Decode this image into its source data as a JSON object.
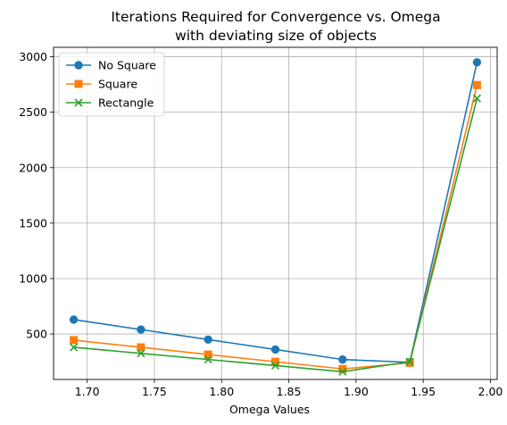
{
  "chart_data": {
    "type": "line",
    "title_line1": "Iterations Required for Convergence vs. Omega",
    "title_line2": "with deviating size of objects",
    "xlabel": "Omega Values",
    "ylabel": "",
    "xlim": [
      1.675,
      2.005
    ],
    "ylim": [
      90,
      3085
    ],
    "xticks": [
      1.7,
      1.75,
      1.8,
      1.85,
      1.9,
      1.95,
      2.0
    ],
    "xtick_labels": [
      "1.70",
      "1.75",
      "1.80",
      "1.85",
      "1.90",
      "1.95",
      "2.00"
    ],
    "yticks": [
      500,
      1000,
      1500,
      2000,
      2500,
      3000
    ],
    "ytick_labels": [
      "500",
      "1000",
      "1500",
      "2000",
      "2500",
      "3000"
    ],
    "grid": true,
    "legend_position": "top-left",
    "x": [
      1.69,
      1.74,
      1.79,
      1.84,
      1.89,
      1.94,
      1.99
    ],
    "series": [
      {
        "name": "No Square",
        "color": "#1f77b4",
        "marker": "circle",
        "values": [
          630,
          540,
          450,
          360,
          270,
          245,
          2950
        ]
      },
      {
        "name": "Square",
        "color": "#ff7f0e",
        "marker": "square",
        "values": [
          445,
          380,
          315,
          250,
          185,
          240,
          2745
        ]
      },
      {
        "name": "Rectangle",
        "color": "#2ca02c",
        "marker": "x",
        "values": [
          380,
          325,
          270,
          215,
          160,
          250,
          2625
        ]
      }
    ]
  }
}
